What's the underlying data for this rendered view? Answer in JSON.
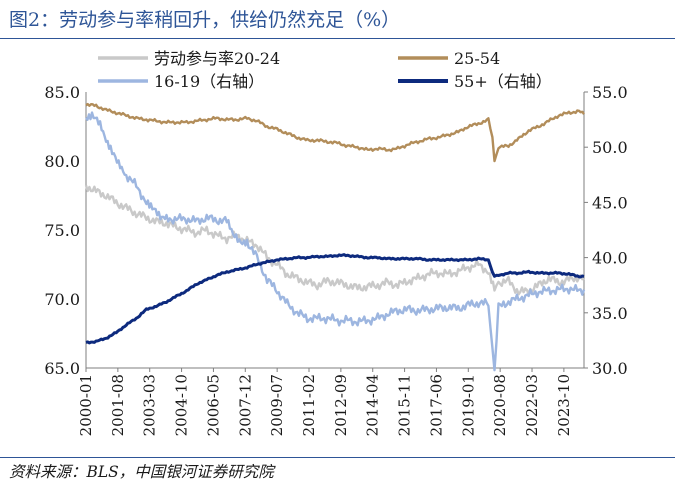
{
  "title": "图2：劳动参与率稍回升，供给仍然充足（%）",
  "source": "资料来源：BLS，中国银河证券研究院",
  "chart_data": {
    "type": "line",
    "x_ticks": [
      "2000-01",
      "2001-08",
      "2003-03",
      "2004-10",
      "2006-05",
      "2007-12",
      "2009-07",
      "2011-02",
      "2012-09",
      "2014-04",
      "2015-11",
      "2017-06",
      "2019-01",
      "2020-08",
      "2022-03",
      "2023-10"
    ],
    "x_range": [
      2000.0,
      2024.75
    ],
    "y_left": {
      "range": [
        65,
        85
      ],
      "ticks": [
        "65.0",
        "70.0",
        "75.0",
        "80.0",
        "85.0"
      ]
    },
    "y_right": {
      "range": [
        30,
        55
      ],
      "ticks": [
        "30.0",
        "35.0",
        "40.0",
        "45.0",
        "50.0",
        "55.0"
      ]
    },
    "grid": false,
    "legend_position": "top",
    "series": [
      {
        "name": "劳动参与率20-24",
        "axis": "left",
        "color": "#c9c9c9",
        "x": [
          2000.0,
          2000.5,
          2001.0,
          2001.5,
          2002.0,
          2002.5,
          2003.0,
          2003.5,
          2004.0,
          2004.5,
          2005.0,
          2005.5,
          2006.0,
          2006.5,
          2007.0,
          2007.5,
          2008.0,
          2008.5,
          2009.0,
          2009.5,
          2010.0,
          2010.5,
          2011.0,
          2011.5,
          2012.0,
          2012.5,
          2013.0,
          2013.5,
          2014.0,
          2014.5,
          2015.0,
          2015.5,
          2016.0,
          2016.5,
          2017.0,
          2017.5,
          2018.0,
          2018.5,
          2019.0,
          2019.5,
          2020.0,
          2020.3,
          2020.5,
          2021.0,
          2021.5,
          2022.0,
          2022.5,
          2023.0,
          2023.5,
          2024.0,
          2024.5,
          2024.75
        ],
        "values": [
          78.2,
          77.8,
          77.5,
          77.0,
          76.6,
          76.2,
          75.9,
          75.6,
          75.5,
          75.2,
          75.0,
          74.8,
          75.0,
          74.6,
          74.4,
          74.6,
          74.2,
          73.9,
          73.0,
          72.5,
          71.8,
          71.5,
          71.2,
          71.0,
          71.3,
          71.2,
          71.0,
          70.8,
          70.9,
          71.0,
          71.2,
          71.0,
          71.3,
          71.5,
          71.8,
          71.9,
          71.8,
          72.0,
          72.3,
          72.5,
          72.0,
          70.8,
          71.2,
          71.3,
          70.5,
          70.6,
          71.0,
          71.5,
          71.2,
          71.4,
          71.6,
          71.5
        ]
      },
      {
        "name": "25-54",
        "axis": "left",
        "color": "#b28d5a",
        "x": [
          2000.0,
          2000.5,
          2001.0,
          2001.5,
          2002.0,
          2002.5,
          2003.0,
          2003.5,
          2004.0,
          2004.5,
          2005.0,
          2005.5,
          2006.0,
          2006.5,
          2007.0,
          2007.5,
          2008.0,
          2008.5,
          2009.0,
          2009.5,
          2010.0,
          2010.5,
          2011.0,
          2011.5,
          2012.0,
          2012.5,
          2013.0,
          2013.5,
          2014.0,
          2014.5,
          2015.0,
          2015.5,
          2016.0,
          2016.5,
          2017.0,
          2017.5,
          2018.0,
          2018.5,
          2019.0,
          2019.5,
          2020.0,
          2020.2,
          2020.3,
          2020.5,
          2021.0,
          2021.5,
          2022.0,
          2022.5,
          2023.0,
          2023.5,
          2024.0,
          2024.5,
          2024.75
        ],
        "values": [
          84.1,
          84.0,
          83.7,
          83.5,
          83.3,
          83.1,
          83.0,
          82.9,
          82.8,
          82.8,
          82.8,
          82.9,
          83.0,
          83.1,
          83.0,
          83.0,
          83.1,
          82.9,
          82.5,
          82.3,
          82.0,
          81.7,
          81.5,
          81.5,
          81.4,
          81.3,
          81.1,
          81.0,
          80.8,
          80.9,
          80.8,
          80.9,
          81.2,
          81.4,
          81.6,
          81.7,
          81.9,
          82.1,
          82.5,
          82.7,
          83.0,
          81.8,
          79.9,
          81.0,
          81.1,
          81.6,
          82.2,
          82.5,
          82.9,
          83.3,
          83.5,
          83.6,
          83.4
        ]
      },
      {
        "name": "16-19（右轴）",
        "axis": "right",
        "color": "#9db6e0",
        "x": [
          2000.0,
          2000.3,
          2000.7,
          2001.0,
          2001.3,
          2001.7,
          2002.0,
          2002.5,
          2003.0,
          2003.3,
          2003.7,
          2004.0,
          2004.5,
          2005.0,
          2005.5,
          2006.0,
          2006.5,
          2007.0,
          2007.3,
          2007.7,
          2008.0,
          2008.5,
          2009.0,
          2009.5,
          2010.0,
          2010.5,
          2011.0,
          2011.5,
          2012.0,
          2012.5,
          2013.0,
          2013.5,
          2014.0,
          2014.5,
          2015.0,
          2015.5,
          2016.0,
          2016.5,
          2017.0,
          2017.5,
          2018.0,
          2018.5,
          2019.0,
          2019.5,
          2020.0,
          2020.2,
          2020.3,
          2020.5,
          2021.0,
          2021.5,
          2022.0,
          2022.5,
          2023.0,
          2023.5,
          2024.0,
          2024.5,
          2024.75
        ],
        "values": [
          52.5,
          52.8,
          52.0,
          50.5,
          49.5,
          48.5,
          47.5,
          46.5,
          45.0,
          44.5,
          43.5,
          43.5,
          43.5,
          43.5,
          43.3,
          43.6,
          43.4,
          43.3,
          42.0,
          41.5,
          41.5,
          40.0,
          38.0,
          37.0,
          35.8,
          35.0,
          34.5,
          34.5,
          34.5,
          34.3,
          34.3,
          34.2,
          34.3,
          34.5,
          34.9,
          35.2,
          35.3,
          35.2,
          35.3,
          35.4,
          35.5,
          35.4,
          35.7,
          35.9,
          35.8,
          31.5,
          30.0,
          35.5,
          36.0,
          36.3,
          36.6,
          36.9,
          37.0,
          37.1,
          37.2,
          37.0,
          37.1
        ]
      },
      {
        "name": "55+（右轴）",
        "axis": "right",
        "color": "#0d2a7e",
        "x": [
          2000.0,
          2000.5,
          2001.0,
          2001.5,
          2002.0,
          2002.5,
          2003.0,
          2003.5,
          2004.0,
          2004.5,
          2005.0,
          2005.5,
          2006.0,
          2006.5,
          2007.0,
          2007.5,
          2008.0,
          2008.5,
          2009.0,
          2009.5,
          2010.0,
          2010.5,
          2011.0,
          2011.5,
          2012.0,
          2012.5,
          2013.0,
          2013.5,
          2014.0,
          2014.5,
          2015.0,
          2015.5,
          2016.0,
          2016.5,
          2017.0,
          2017.5,
          2018.0,
          2018.5,
          2019.0,
          2019.5,
          2020.0,
          2020.2,
          2020.3,
          2020.5,
          2021.0,
          2021.5,
          2022.0,
          2022.5,
          2023.0,
          2023.5,
          2024.0,
          2024.5,
          2024.75
        ],
        "values": [
          32.3,
          32.4,
          32.7,
          33.2,
          33.9,
          34.5,
          35.3,
          35.6,
          36.0,
          36.5,
          37.0,
          37.6,
          38.0,
          38.4,
          38.7,
          38.9,
          39.1,
          39.4,
          39.6,
          39.8,
          39.9,
          40.0,
          40.0,
          40.1,
          40.1,
          40.2,
          40.2,
          40.1,
          40.0,
          40.0,
          39.9,
          39.9,
          39.9,
          39.9,
          39.8,
          39.8,
          39.8,
          39.8,
          39.8,
          39.9,
          39.8,
          38.7,
          38.3,
          38.4,
          38.6,
          38.6,
          38.7,
          38.6,
          38.6,
          38.6,
          38.5,
          38.3,
          38.3
        ]
      }
    ]
  }
}
